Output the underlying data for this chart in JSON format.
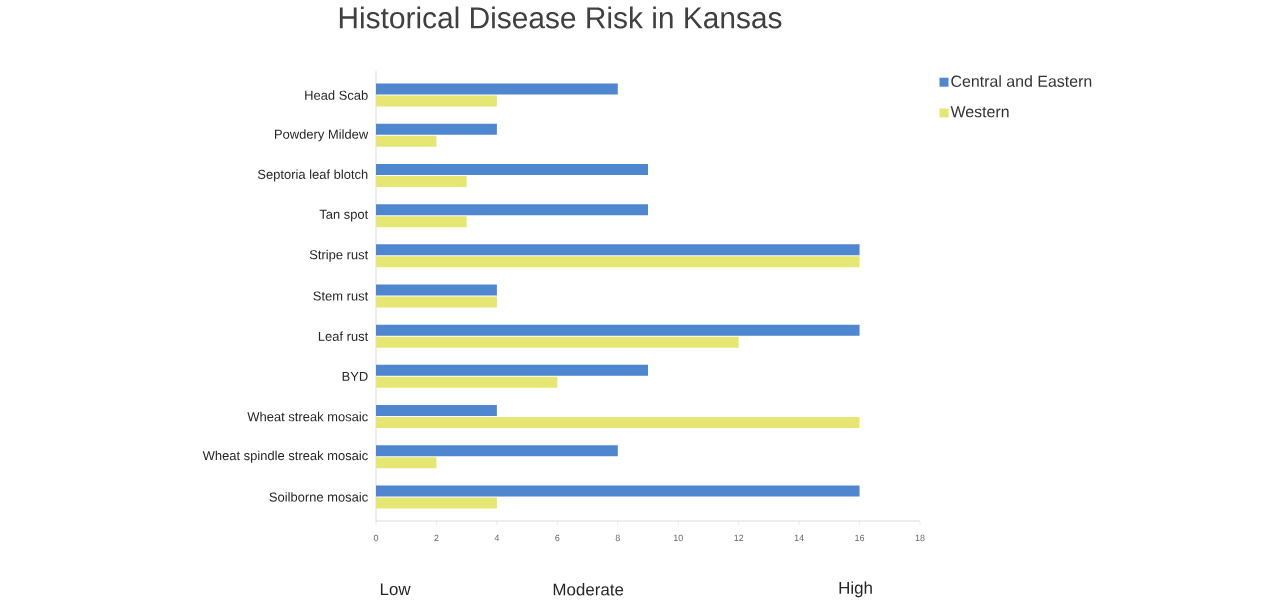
{
  "chart_data": {
    "type": "bar",
    "orientation": "horizontal",
    "title": "Historical Disease Risk in Kansas",
    "categories": [
      "Head Scab",
      "Powdery Mildew",
      "Septoria leaf blotch",
      "Tan spot",
      "Stripe rust",
      "Stem rust",
      "Leaf rust",
      "BYD",
      "Wheat streak mosaic",
      "Wheat spindle streak mosaic",
      "Soilborne mosaic"
    ],
    "series": [
      {
        "name": "Central and Eastern",
        "color": "#4f86d0",
        "values": [
          8,
          4,
          9,
          9,
          16,
          4,
          16,
          9,
          4,
          8,
          16
        ]
      },
      {
        "name": "Western",
        "color": "#e6e673",
        "values": [
          4,
          2,
          3,
          3,
          16,
          4,
          12,
          6,
          16,
          2,
          4
        ]
      }
    ],
    "xlim": [
      0,
      18
    ],
    "xticks": [
      0,
      2,
      4,
      6,
      8,
      10,
      12,
      14,
      16,
      18
    ],
    "annotations": [
      "Low",
      "Moderate",
      "High"
    ],
    "legend": "top right",
    "grid": false
  }
}
